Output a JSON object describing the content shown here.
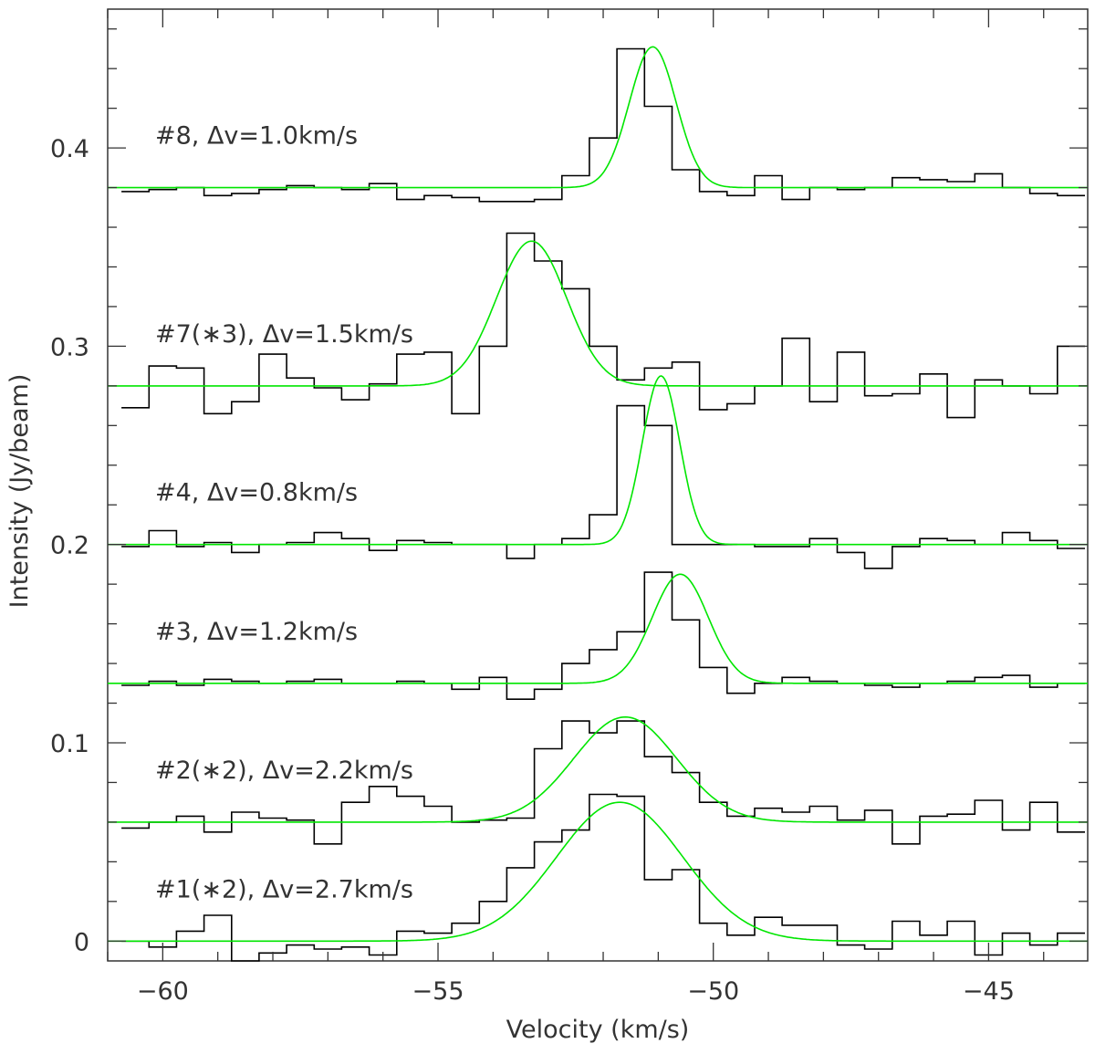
{
  "chart_data": {
    "type": "line",
    "title": "",
    "xlabel": "Velocity (km/s)",
    "ylabel": "Intensity (Jy/beam)",
    "xlim": [
      -61,
      -43.2
    ],
    "ylim": [
      -0.01,
      0.47
    ],
    "x_ticks": [
      -60,
      -55,
      -50,
      -45
    ],
    "x_tick_labels": [
      "−60",
      "−55",
      "−50",
      "−45"
    ],
    "y_ticks": [
      0,
      0.1,
      0.2,
      0.3,
      0.4
    ],
    "y_tick_labels": [
      "0",
      "0.1",
      "0.2",
      "0.3",
      "0.4"
    ],
    "grid": false,
    "colors": {
      "data": "#000000",
      "fit": "#00e600",
      "axes": "#333333"
    },
    "x": [
      -60.5,
      -60.0,
      -59.5,
      -59.0,
      -58.5,
      -58.0,
      -57.5,
      -57.0,
      -56.5,
      -56.0,
      -55.5,
      -55.0,
      -54.5,
      -54.0,
      -53.5,
      -53.0,
      -52.5,
      -52.0,
      -51.5,
      -51.0,
      -50.5,
      -50.0,
      -49.5,
      -49.0,
      -48.5,
      -48.0,
      -47.5,
      -47.0,
      -46.5,
      -46.0,
      -45.5,
      -45.0,
      -44.5,
      -44.0,
      -43.5
    ],
    "series": [
      {
        "label": "#8, Δv=1.0km/s",
        "offset": 0.38,
        "data": [
          0.378,
          0.379,
          0.38,
          0.376,
          0.377,
          0.379,
          0.381,
          0.38,
          0.379,
          0.382,
          0.374,
          0.376,
          0.375,
          0.373,
          0.373,
          0.374,
          0.386,
          0.405,
          0.45,
          0.421,
          0.389,
          0.378,
          0.376,
          0.386,
          0.374,
          0.38,
          0.379,
          0.38,
          0.385,
          0.384,
          0.383,
          0.387,
          0.38,
          0.377,
          0.376
        ],
        "fit": {
          "amplitude": 0.071,
          "center": -51.1,
          "fwhm": 1.0
        }
      },
      {
        "label": "#7(∗3), Δv=1.5km/s",
        "offset": 0.28,
        "data": [
          0.269,
          0.29,
          0.289,
          0.266,
          0.272,
          0.296,
          0.284,
          0.279,
          0.273,
          0.281,
          0.296,
          0.297,
          0.266,
          0.3,
          0.357,
          0.343,
          0.329,
          0.3,
          0.283,
          0.289,
          0.292,
          0.268,
          0.271,
          0.28,
          0.304,
          0.272,
          0.297,
          0.275,
          0.276,
          0.286,
          0.264,
          0.283,
          0.28,
          0.276,
          0.3
        ],
        "fit": {
          "amplitude": 0.073,
          "center": -53.3,
          "fwhm": 1.5
        }
      },
      {
        "label": "#4, Δv=0.8km/s",
        "offset": 0.2,
        "data": [
          0.199,
          0.207,
          0.199,
          0.201,
          0.196,
          0.2,
          0.201,
          0.206,
          0.203,
          0.197,
          0.202,
          0.201,
          0.2,
          0.2,
          0.193,
          0.2,
          0.203,
          0.215,
          0.27,
          0.26,
          0.2,
          0.2,
          0.2,
          0.199,
          0.199,
          0.203,
          0.196,
          0.188,
          0.199,
          0.203,
          0.202,
          0.2,
          0.206,
          0.202,
          0.198
        ],
        "fit": {
          "amplitude": 0.085,
          "center": -50.95,
          "fwhm": 0.8
        }
      },
      {
        "label": "#3, Δv=1.2km/s",
        "offset": 0.13,
        "data": [
          0.129,
          0.131,
          0.129,
          0.132,
          0.131,
          0.13,
          0.131,
          0.132,
          0.13,
          0.13,
          0.131,
          0.13,
          0.127,
          0.133,
          0.122,
          0.127,
          0.14,
          0.147,
          0.156,
          0.186,
          0.162,
          0.138,
          0.125,
          0.13,
          0.133,
          0.131,
          0.13,
          0.129,
          0.128,
          0.13,
          0.131,
          0.133,
          0.134,
          0.128,
          0.13
        ],
        "fit": {
          "amplitude": 0.055,
          "center": -50.6,
          "fwhm": 1.2
        }
      },
      {
        "label": "#2(∗2), Δv=2.2km/s",
        "offset": 0.06,
        "data": [
          0.057,
          0.06,
          0.063,
          0.055,
          0.065,
          0.062,
          0.061,
          0.049,
          0.07,
          0.078,
          0.073,
          0.068,
          0.06,
          0.061,
          0.062,
          0.097,
          0.111,
          0.105,
          0.111,
          0.093,
          0.085,
          0.07,
          0.063,
          0.067,
          0.065,
          0.068,
          0.061,
          0.066,
          0.049,
          0.063,
          0.064,
          0.071,
          0.056,
          0.07,
          0.055
        ],
        "fit": {
          "amplitude": 0.053,
          "center": -51.6,
          "fwhm": 2.2
        }
      },
      {
        "label": "#1(∗2), Δv=2.7km/s",
        "offset": 0.0,
        "data": [
          0.0,
          -0.003,
          0.005,
          0.013,
          -0.01,
          -0.006,
          -0.002,
          -0.004,
          -0.003,
          -0.007,
          0.005,
          0.004,
          0.009,
          0.02,
          0.037,
          0.05,
          0.056,
          0.074,
          0.073,
          0.031,
          0.036,
          0.009,
          0.003,
          0.012,
          0.008,
          0.008,
          -0.002,
          -0.004,
          0.01,
          0.003,
          0.01,
          -0.007,
          0.004,
          -0.002,
          0.004
        ],
        "fit": {
          "amplitude": 0.07,
          "center": -51.7,
          "fwhm": 2.7
        }
      }
    ]
  }
}
